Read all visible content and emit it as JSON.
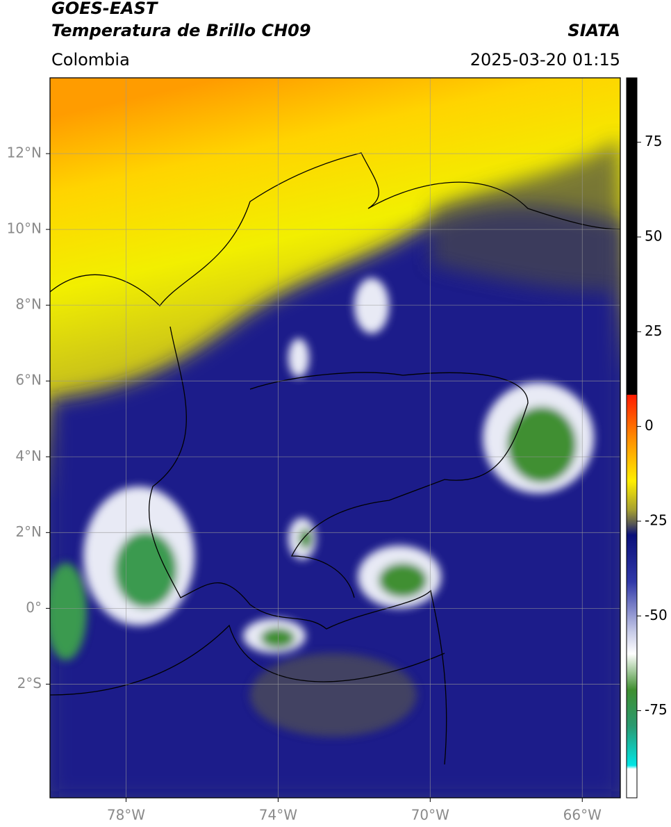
{
  "header": {
    "title": "GOES-EAST",
    "subtitle": "Temperatura de Brillo CH09",
    "source": "SIATA",
    "region": "Colombia",
    "datetime": "2025-03-20 01:15"
  },
  "map": {
    "xlim": [
      -80,
      -65
    ],
    "ylim": [
      -5,
      14
    ],
    "xticks": [
      {
        "value": -78,
        "label": "78°W"
      },
      {
        "value": -74,
        "label": "74°W"
      },
      {
        "value": -70,
        "label": "70°W"
      },
      {
        "value": -66,
        "label": "66°W"
      }
    ],
    "yticks": [
      {
        "value": 12,
        "label": "12°N"
      },
      {
        "value": 10,
        "label": "10°N"
      },
      {
        "value": 8,
        "label": "8°N"
      },
      {
        "value": 6,
        "label": "6°N"
      },
      {
        "value": 4,
        "label": "4°N"
      },
      {
        "value": 2,
        "label": "2°N"
      },
      {
        "value": 0,
        "label": "0°"
      },
      {
        "value": -2,
        "label": "2°S"
      }
    ],
    "grid": true
  },
  "colorbar": {
    "lim": [
      -98,
      92
    ],
    "ticks": [
      75,
      50,
      25,
      0,
      -25,
      -50,
      -75
    ]
  }
}
